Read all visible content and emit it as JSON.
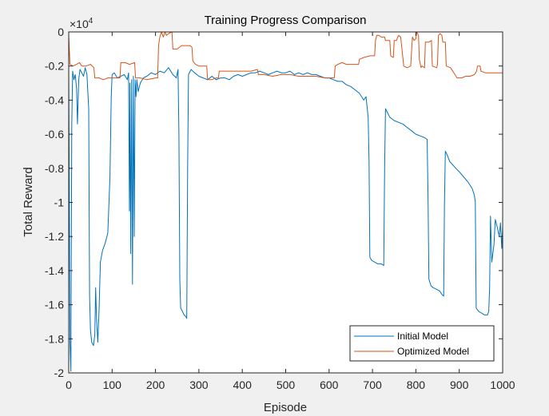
{
  "chart_data": {
    "type": "line",
    "title": "Training Progress Comparison",
    "xlabel": "Episode",
    "ylabel": "Total Reward",
    "xlim": [
      0,
      1000
    ],
    "ylim": [
      -2,
      0
    ],
    "y_exponent_label": "×10",
    "y_exponent_power": "4",
    "y_scale": 10000,
    "xticks": [
      0,
      100,
      200,
      300,
      400,
      500,
      600,
      700,
      800,
      900,
      1000
    ],
    "xtick_labels": [
      "0",
      "100",
      "200",
      "300",
      "400",
      "500",
      "600",
      "700",
      "800",
      "900",
      "1000"
    ],
    "yticks": [
      0,
      -0.2,
      -0.4,
      -0.6,
      -0.8,
      -1,
      -1.2,
      -1.4,
      -1.6,
      -1.8,
      -2
    ],
    "ytick_labels": [
      "0",
      "-0.2",
      "-0.4",
      "-0.6",
      "-0.8",
      "-1",
      "-1.2",
      "-1.4",
      "-1.6",
      "-1.8",
      "-2"
    ],
    "grid": false,
    "legend_position": "bottom-right",
    "series": [
      {
        "name": "Initial Model",
        "color": "#0072bd",
        "points": [
          [
            0,
            -0.18
          ],
          [
            3,
            -1.82
          ],
          [
            5,
            -1.99
          ],
          [
            7,
            -0.55
          ],
          [
            9,
            -0.23
          ],
          [
            12,
            -0.28
          ],
          [
            15,
            -0.25
          ],
          [
            18,
            -0.33
          ],
          [
            20,
            -0.54
          ],
          [
            23,
            -0.28
          ],
          [
            26,
            -0.22
          ],
          [
            30,
            -0.24
          ],
          [
            34,
            -0.26
          ],
          [
            38,
            -0.21
          ],
          [
            42,
            -0.25
          ],
          [
            46,
            -0.45
          ],
          [
            48,
            -1.55
          ],
          [
            50,
            -1.75
          ],
          [
            53,
            -1.82
          ],
          [
            57,
            -1.84
          ],
          [
            60,
            -1.78
          ],
          [
            62,
            -1.5
          ],
          [
            64,
            -1.68
          ],
          [
            67,
            -1.82
          ],
          [
            70,
            -1.63
          ],
          [
            73,
            -1.35
          ],
          [
            78,
            -1.28
          ],
          [
            84,
            -1.24
          ],
          [
            90,
            -1.18
          ],
          [
            95,
            -0.85
          ],
          [
            98,
            -0.38
          ],
          [
            100,
            -0.25
          ],
          [
            105,
            -0.24
          ],
          [
            112,
            -0.27
          ],
          [
            120,
            -0.26
          ],
          [
            128,
            -0.25
          ],
          [
            135,
            -0.28
          ],
          [
            138,
            -0.24
          ],
          [
            140,
            -1.05
          ],
          [
            141,
            -0.3
          ],
          [
            143,
            -1.3
          ],
          [
            145,
            -0.28
          ],
          [
            147,
            -1.48
          ],
          [
            149,
            -0.26
          ],
          [
            151,
            -1.2
          ],
          [
            153,
            -0.28
          ],
          [
            155,
            -0.38
          ],
          [
            157,
            -0.28
          ],
          [
            160,
            -0.35
          ],
          [
            165,
            -0.3
          ],
          [
            172,
            -0.27
          ],
          [
            180,
            -0.26
          ],
          [
            190,
            -0.24
          ],
          [
            200,
            -0.25
          ],
          [
            210,
            -0.23
          ],
          [
            220,
            -0.24
          ],
          [
            230,
            -0.21
          ],
          [
            240,
            -0.25
          ],
          [
            248,
            -0.27
          ],
          [
            252,
            -0.22
          ],
          [
            254,
            -0.6
          ],
          [
            256,
            -1.45
          ],
          [
            258,
            -1.62
          ],
          [
            262,
            -1.64
          ],
          [
            266,
            -1.66
          ],
          [
            270,
            -1.67
          ],
          [
            272,
            -1.68
          ],
          [
            274,
            -0.8
          ],
          [
            276,
            -0.25
          ],
          [
            282,
            -0.22
          ],
          [
            290,
            -0.24
          ],
          [
            300,
            -0.26
          ],
          [
            310,
            -0.27
          ],
          [
            320,
            -0.28
          ],
          [
            330,
            -0.26
          ],
          [
            340,
            -0.28
          ],
          [
            350,
            -0.27
          ],
          [
            360,
            -0.27
          ],
          [
            370,
            -0.28
          ],
          [
            380,
            -0.26
          ],
          [
            390,
            -0.25
          ],
          [
            400,
            -0.26
          ],
          [
            410,
            -0.25
          ],
          [
            420,
            -0.24
          ],
          [
            430,
            -0.24
          ],
          [
            440,
            -0.23
          ],
          [
            450,
            -0.24
          ],
          [
            460,
            -0.25
          ],
          [
            470,
            -0.24
          ],
          [
            480,
            -0.23
          ],
          [
            490,
            -0.24
          ],
          [
            500,
            -0.24
          ],
          [
            510,
            -0.23
          ],
          [
            520,
            -0.25
          ],
          [
            530,
            -0.24
          ],
          [
            540,
            -0.25
          ],
          [
            550,
            -0.24
          ],
          [
            560,
            -0.25
          ],
          [
            570,
            -0.25
          ],
          [
            580,
            -0.26
          ],
          [
            590,
            -0.27
          ],
          [
            600,
            -0.27
          ],
          [
            610,
            -0.28
          ],
          [
            620,
            -0.29
          ],
          [
            630,
            -0.29
          ],
          [
            640,
            -0.31
          ],
          [
            650,
            -0.32
          ],
          [
            660,
            -0.34
          ],
          [
            670,
            -0.36
          ],
          [
            680,
            -0.4
          ],
          [
            685,
            -0.38
          ],
          [
            690,
            -0.5
          ],
          [
            692,
            -0.75
          ],
          [
            694,
            -1.32
          ],
          [
            698,
            -1.34
          ],
          [
            705,
            -1.35
          ],
          [
            712,
            -1.36
          ],
          [
            720,
            -1.36
          ],
          [
            726,
            -1.37
          ],
          [
            728,
            -0.8
          ],
          [
            730,
            -0.45
          ],
          [
            740,
            -0.5
          ],
          [
            750,
            -0.52
          ],
          [
            760,
            -0.53
          ],
          [
            770,
            -0.54
          ],
          [
            780,
            -0.56
          ],
          [
            790,
            -0.58
          ],
          [
            800,
            -0.6
          ],
          [
            810,
            -0.61
          ],
          [
            820,
            -0.62
          ],
          [
            826,
            -0.63
          ],
          [
            828,
            -0.95
          ],
          [
            830,
            -1.45
          ],
          [
            835,
            -1.49
          ],
          [
            840,
            -1.5
          ],
          [
            848,
            -1.51
          ],
          [
            855,
            -1.52
          ],
          [
            860,
            -1.54
          ],
          [
            864,
            -1.55
          ],
          [
            866,
            -1.0
          ],
          [
            868,
            -0.7
          ],
          [
            872,
            -0.72
          ],
          [
            878,
            -0.76
          ],
          [
            885,
            -0.78
          ],
          [
            892,
            -0.8
          ],
          [
            900,
            -0.82
          ],
          [
            910,
            -0.85
          ],
          [
            920,
            -0.88
          ],
          [
            930,
            -0.92
          ],
          [
            935,
            -0.96
          ],
          [
            937,
            -1.0
          ],
          [
            939,
            -1.62
          ],
          [
            945,
            -1.64
          ],
          [
            952,
            -1.65
          ],
          [
            958,
            -1.66
          ],
          [
            965,
            -1.66
          ],
          [
            968,
            -1.64
          ],
          [
            970,
            -1.5
          ],
          [
            972,
            -1.08
          ],
          [
            975,
            -1.35
          ],
          [
            980,
            -1.25
          ],
          [
            983,
            -1.1
          ],
          [
            988,
            -1.15
          ],
          [
            992,
            -1.2
          ],
          [
            995,
            -1.12
          ],
          [
            998,
            -1.27
          ],
          [
            1000,
            -1.14
          ]
        ]
      },
      {
        "name": "Optimized Model",
        "color": "#d95319",
        "points": [
          [
            0,
            -0.02
          ],
          [
            3,
            -0.19
          ],
          [
            10,
            -0.2
          ],
          [
            18,
            -0.19
          ],
          [
            25,
            -0.18
          ],
          [
            30,
            -0.2
          ],
          [
            40,
            -0.2
          ],
          [
            50,
            -0.19
          ],
          [
            58,
            -0.21
          ],
          [
            60,
            -0.27
          ],
          [
            70,
            -0.27
          ],
          [
            80,
            -0.28
          ],
          [
            90,
            -0.27
          ],
          [
            100,
            -0.27
          ],
          [
            118,
            -0.27
          ],
          [
            120,
            -0.18
          ],
          [
            130,
            -0.18
          ],
          [
            140,
            -0.19
          ],
          [
            152,
            -0.18
          ],
          [
            154,
            -0.27
          ],
          [
            165,
            -0.27
          ],
          [
            180,
            -0.28
          ],
          [
            200,
            -0.27
          ],
          [
            205,
            -0.27
          ],
          [
            207,
            -0.08
          ],
          [
            210,
            -0.03
          ],
          [
            214,
            0
          ],
          [
            218,
            -0.03
          ],
          [
            222,
            0
          ],
          [
            225,
            -0.02
          ],
          [
            230,
            -0.01
          ],
          [
            238,
            0
          ],
          [
            240,
            -0.1
          ],
          [
            250,
            -0.1
          ],
          [
            260,
            -0.08
          ],
          [
            270,
            -0.08
          ],
          [
            280,
            -0.08
          ],
          [
            284,
            -0.09
          ],
          [
            286,
            -0.17
          ],
          [
            292,
            -0.19
          ],
          [
            300,
            -0.2
          ],
          [
            318,
            -0.2
          ],
          [
            320,
            -0.28
          ],
          [
            330,
            -0.28
          ],
          [
            340,
            -0.27
          ],
          [
            345,
            -0.27
          ],
          [
            347,
            -0.23
          ],
          [
            360,
            -0.23
          ],
          [
            380,
            -0.23
          ],
          [
            400,
            -0.23
          ],
          [
            420,
            -0.23
          ],
          [
            435,
            -0.22
          ],
          [
            437,
            -0.25
          ],
          [
            450,
            -0.25
          ],
          [
            470,
            -0.26
          ],
          [
            490,
            -0.25
          ],
          [
            510,
            -0.25
          ],
          [
            530,
            -0.26
          ],
          [
            550,
            -0.26
          ],
          [
            570,
            -0.26
          ],
          [
            590,
            -0.27
          ],
          [
            600,
            -0.27
          ],
          [
            612,
            -0.27
          ],
          [
            614,
            -0.2
          ],
          [
            620,
            -0.19
          ],
          [
            630,
            -0.18
          ],
          [
            640,
            -0.19
          ],
          [
            660,
            -0.19
          ],
          [
            668,
            -0.19
          ],
          [
            670,
            -0.16
          ],
          [
            680,
            -0.15
          ],
          [
            695,
            -0.14
          ],
          [
            705,
            -0.14
          ],
          [
            707,
            -0.05
          ],
          [
            710,
            -0.02
          ],
          [
            715,
            -0.02
          ],
          [
            720,
            -0.03
          ],
          [
            728,
            -0.03
          ],
          [
            730,
            -0.05
          ],
          [
            740,
            -0.05
          ],
          [
            742,
            -0.14
          ],
          [
            748,
            -0.15
          ],
          [
            750,
            -0.05
          ],
          [
            755,
            -0.05
          ],
          [
            760,
            -0.02
          ],
          [
            765,
            -0.03
          ],
          [
            768,
            -0.1
          ],
          [
            772,
            -0.2
          ],
          [
            780,
            -0.21
          ],
          [
            788,
            -0.2
          ],
          [
            792,
            -0.03
          ],
          [
            796,
            -0.05
          ],
          [
            800,
            -0.04
          ],
          [
            802,
            0
          ],
          [
            806,
            -0.02
          ],
          [
            808,
            -0.16
          ],
          [
            812,
            -0.21
          ],
          [
            814,
            -0.2
          ],
          [
            820,
            -0.21
          ],
          [
            822,
            -0.06
          ],
          [
            830,
            -0.06
          ],
          [
            836,
            -0.05
          ],
          [
            838,
            -0.2
          ],
          [
            848,
            -0.21
          ],
          [
            850,
            -0.19
          ],
          [
            852,
            -0.02
          ],
          [
            856,
            -0.01
          ],
          [
            860,
            -0.02
          ],
          [
            862,
            -0.06
          ],
          [
            868,
            -0.06
          ],
          [
            870,
            -0.2
          ],
          [
            880,
            -0.21
          ],
          [
            890,
            -0.25
          ],
          [
            895,
            -0.27
          ],
          [
            905,
            -0.27
          ],
          [
            915,
            -0.26
          ],
          [
            925,
            -0.26
          ],
          [
            935,
            -0.25
          ],
          [
            940,
            -0.23
          ],
          [
            942,
            -0.2
          ],
          [
            948,
            -0.2
          ],
          [
            950,
            -0.23
          ],
          [
            960,
            -0.24
          ],
          [
            975,
            -0.24
          ],
          [
            990,
            -0.24
          ],
          [
            1000,
            -0.24
          ]
        ]
      }
    ]
  }
}
